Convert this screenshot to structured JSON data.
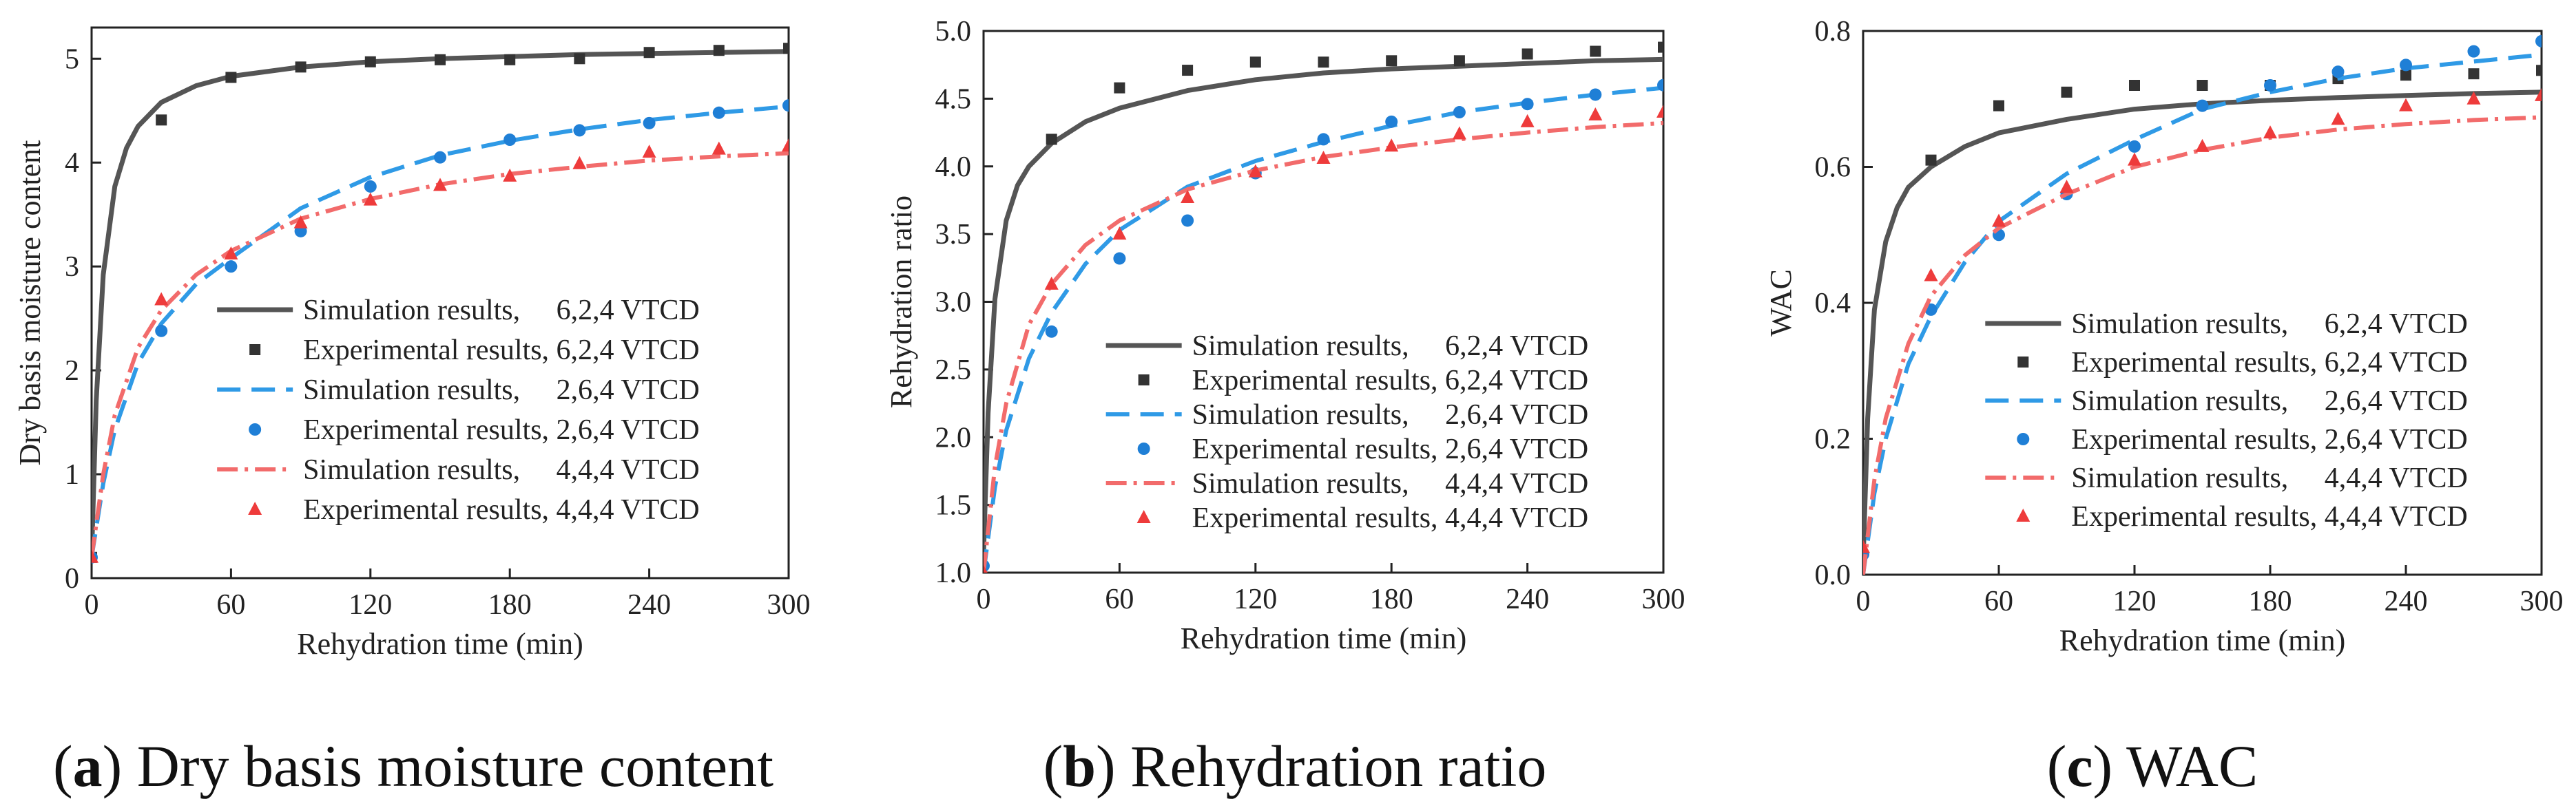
{
  "figure": {
    "captions": [
      {
        "letter": "a",
        "text": ") Dry basis moisture content",
        "open": "("
      },
      {
        "letter": "b",
        "text": ") Rehydration ratio",
        "open": "("
      },
      {
        "letter": "c",
        "text": ") WAC",
        "open": "("
      }
    ]
  },
  "colors": {
    "sim_624": "#555555",
    "exp_624": "#333333",
    "sim_264": "#2f9ae6",
    "exp_264": "#1f7fd6",
    "sim_444": "#f26b6b",
    "exp_444": "#ee3b3b"
  },
  "chart_data": [
    {
      "type": "line",
      "title": "",
      "xlabel": "Rehydration time (min)",
      "ylabel": "Dry basis moisture content",
      "xlim": [
        0,
        300
      ],
      "ylim": [
        0,
        5.3
      ],
      "xticks": [
        0,
        60,
        120,
        180,
        240,
        300
      ],
      "xtick_labels": [
        "0",
        "60",
        "120",
        "180",
        "240",
        "300"
      ],
      "yticks": [
        0,
        1,
        2,
        3,
        4,
        5
      ],
      "ytick_labels": [
        "0",
        "1",
        "2",
        "3",
        "4",
        "5"
      ],
      "legend_position": "bottom-right",
      "series": [
        {
          "name": "Simulation results,     6,2,4 VTCD",
          "kind": "line",
          "style": "solid",
          "color_key": "sim_624",
          "x": [
            0,
            2,
            5,
            10,
            15,
            20,
            30,
            45,
            60,
            90,
            120,
            150,
            180,
            210,
            240,
            270,
            300
          ],
          "y": [
            0.2,
            1.71,
            2.92,
            3.77,
            4.14,
            4.35,
            4.58,
            4.74,
            4.83,
            4.92,
            4.97,
            5.0,
            5.02,
            5.04,
            5.05,
            5.06,
            5.07
          ]
        },
        {
          "name": "Experimental results, 6,2,4 VTCD",
          "kind": "scatter",
          "marker": "square",
          "color_key": "exp_624",
          "x": [
            0,
            30,
            60,
            90,
            120,
            150,
            180,
            210,
            240,
            270,
            300
          ],
          "y": [
            0.2,
            4.41,
            4.82,
            4.92,
            4.97,
            4.99,
            4.99,
            5.0,
            5.06,
            5.08,
            5.1
          ]
        },
        {
          "name": "Simulation results,     2,6,4 VTCD",
          "kind": "line",
          "style": "dashed",
          "color_key": "sim_264",
          "x": [
            0,
            5,
            10,
            20,
            30,
            45,
            60,
            90,
            120,
            150,
            180,
            210,
            240,
            270,
            300
          ],
          "y": [
            0.2,
            0.91,
            1.43,
            2.07,
            2.45,
            2.83,
            3.08,
            3.56,
            3.86,
            4.07,
            4.21,
            4.32,
            4.41,
            4.48,
            4.54
          ]
        },
        {
          "name": "Experimental results, 2,6,4 VTCD",
          "kind": "scatter",
          "marker": "circle",
          "color_key": "exp_264",
          "x": [
            0,
            30,
            60,
            90,
            120,
            150,
            180,
            210,
            240,
            270,
            300
          ],
          "y": [
            0.2,
            2.38,
            3.0,
            3.34,
            3.77,
            4.05,
            4.22,
            4.31,
            4.38,
            4.48,
            4.55
          ]
        },
        {
          "name": "Simulation results,     4,4,4 VTCD",
          "kind": "line",
          "style": "dashdot",
          "color_key": "sim_444",
          "x": [
            0,
            5,
            10,
            20,
            30,
            45,
            60,
            90,
            120,
            150,
            180,
            210,
            240,
            270,
            300
          ],
          "y": [
            0.2,
            1.0,
            1.57,
            2.22,
            2.58,
            2.92,
            3.15,
            3.46,
            3.65,
            3.79,
            3.89,
            3.96,
            4.02,
            4.06,
            4.09
          ]
        },
        {
          "name": "Experimental results, 4,4,4 VTCD",
          "kind": "scatter",
          "marker": "triangle",
          "color_key": "exp_444",
          "x": [
            0,
            30,
            60,
            90,
            120,
            150,
            180,
            210,
            240,
            270,
            300
          ],
          "y": [
            0.2,
            2.68,
            3.12,
            3.42,
            3.64,
            3.78,
            3.87,
            3.99,
            4.1,
            4.13,
            4.16
          ]
        }
      ]
    },
    {
      "type": "line",
      "title": "",
      "xlabel": "Rehydration time (min)",
      "ylabel": "Rehydration ratio",
      "xlim": [
        0,
        300
      ],
      "ylim": [
        1.0,
        5.0
      ],
      "xticks": [
        0,
        60,
        120,
        180,
        240,
        300
      ],
      "xtick_labels": [
        "0",
        "60",
        "120",
        "180",
        "240",
        "300"
      ],
      "yticks": [
        1.0,
        1.5,
        2.0,
        2.5,
        3.0,
        3.5,
        4.0,
        4.5,
        5.0
      ],
      "ytick_labels": [
        "1.0",
        "1.5",
        "2.0",
        "2.5",
        "3.0",
        "3.5",
        "4.0",
        "4.5",
        "5.0"
      ],
      "legend_position": "bottom-right",
      "series": [
        {
          "name": "Simulation results,     6,2,4 VTCD",
          "kind": "line",
          "style": "solid",
          "color_key": "sim_624",
          "x": [
            0,
            2,
            5,
            10,
            15,
            20,
            30,
            45,
            60,
            90,
            120,
            150,
            180,
            210,
            240,
            270,
            300
          ],
          "y": [
            1.15,
            2.18,
            3.02,
            3.6,
            3.86,
            4.0,
            4.17,
            4.33,
            4.43,
            4.56,
            4.64,
            4.69,
            4.72,
            4.74,
            4.76,
            4.78,
            4.79
          ]
        },
        {
          "name": "Experimental results, 6,2,4 VTCD",
          "kind": "scatter",
          "marker": "square",
          "color_key": "exp_624",
          "x": [
            30,
            60,
            90,
            120,
            150,
            180,
            210,
            240,
            270,
            300
          ],
          "y": [
            4.2,
            4.58,
            4.71,
            4.77,
            4.77,
            4.78,
            4.78,
            4.83,
            4.85,
            4.88
          ]
        },
        {
          "name": "Simulation results,     2,6,4 VTCD",
          "kind": "line",
          "style": "dashed",
          "color_key": "sim_264",
          "x": [
            0,
            5,
            10,
            20,
            30,
            45,
            60,
            90,
            120,
            150,
            180,
            210,
            240,
            270,
            300
          ],
          "y": [
            1.0,
            1.63,
            2.05,
            2.58,
            2.92,
            3.28,
            3.53,
            3.85,
            4.04,
            4.18,
            4.3,
            4.4,
            4.47,
            4.53,
            4.58
          ]
        },
        {
          "name": "Experimental results, 2,6,4 VTCD",
          "kind": "scatter",
          "marker": "circle",
          "color_key": "exp_264",
          "x": [
            0,
            30,
            60,
            90,
            120,
            150,
            180,
            210,
            240,
            270,
            300
          ],
          "y": [
            1.05,
            2.78,
            3.32,
            3.6,
            3.95,
            4.2,
            4.33,
            4.4,
            4.46,
            4.53,
            4.6
          ]
        },
        {
          "name": "Simulation results,     4,4,4 VTCD",
          "kind": "line",
          "style": "dashdot",
          "color_key": "sim_444",
          "x": [
            0,
            5,
            10,
            20,
            30,
            45,
            60,
            90,
            120,
            150,
            180,
            210,
            240,
            270,
            300
          ],
          "y": [
            1.0,
            1.78,
            2.25,
            2.83,
            3.13,
            3.42,
            3.6,
            3.83,
            3.97,
            4.07,
            4.14,
            4.2,
            4.25,
            4.29,
            4.32
          ]
        },
        {
          "name": "Experimental results, 4,4,4 VTCD",
          "kind": "scatter",
          "marker": "triangle",
          "color_key": "exp_444",
          "x": [
            0,
            30,
            60,
            90,
            120,
            150,
            180,
            210,
            240,
            270,
            300
          ],
          "y": [
            1.0,
            3.13,
            3.5,
            3.77,
            3.96,
            4.06,
            4.15,
            4.24,
            4.33,
            4.38,
            4.4
          ]
        }
      ]
    },
    {
      "type": "line",
      "title": "",
      "xlabel": "Rehydration time (min)",
      "ylabel": "WAC",
      "xlim": [
        0,
        300
      ],
      "ylim": [
        0.0,
        0.8
      ],
      "xticks": [
        0,
        60,
        120,
        180,
        240,
        300
      ],
      "xtick_labels": [
        "0",
        "60",
        "120",
        "180",
        "240",
        "300"
      ],
      "yticks": [
        0.0,
        0.2,
        0.4,
        0.6,
        0.8
      ],
      "ytick_labels": [
        "0.0",
        "0.2",
        "0.4",
        "0.6",
        "0.8"
      ],
      "legend_position": "bottom-right",
      "series": [
        {
          "name": "Simulation results,     6,2,4 VTCD",
          "kind": "line",
          "style": "solid",
          "color_key": "sim_624",
          "x": [
            0,
            2,
            5,
            10,
            15,
            20,
            30,
            45,
            60,
            90,
            120,
            150,
            180,
            210,
            240,
            270,
            300
          ],
          "y": [
            0.02,
            0.23,
            0.39,
            0.49,
            0.54,
            0.57,
            0.6,
            0.63,
            0.65,
            0.67,
            0.685,
            0.693,
            0.698,
            0.702,
            0.705,
            0.708,
            0.71
          ]
        },
        {
          "name": "Experimental results, 6,2,4 VTCD",
          "kind": "scatter",
          "marker": "square",
          "color_key": "exp_624",
          "x": [
            30,
            60,
            90,
            120,
            150,
            180,
            210,
            240,
            270,
            300
          ],
          "y": [
            0.61,
            0.69,
            0.71,
            0.72,
            0.72,
            0.72,
            0.73,
            0.735,
            0.737,
            0.742
          ]
        },
        {
          "name": "Simulation results,     2,6,4 VTCD",
          "kind": "line",
          "style": "dashed",
          "color_key": "sim_264",
          "x": [
            0,
            5,
            10,
            20,
            30,
            45,
            60,
            90,
            120,
            150,
            180,
            210,
            240,
            270,
            300
          ],
          "y": [
            0.0,
            0.12,
            0.2,
            0.31,
            0.38,
            0.46,
            0.52,
            0.59,
            0.64,
            0.685,
            0.71,
            0.73,
            0.745,
            0.755,
            0.765
          ]
        },
        {
          "name": "Experimental results, 2,6,4 VTCD",
          "kind": "scatter",
          "marker": "circle",
          "color_key": "exp_264",
          "x": [
            0,
            30,
            60,
            90,
            120,
            150,
            180,
            210,
            240,
            270,
            300
          ],
          "y": [
            0.03,
            0.39,
            0.5,
            0.56,
            0.63,
            0.69,
            0.72,
            0.74,
            0.75,
            0.77,
            0.785
          ]
        },
        {
          "name": "Simulation results,     4,4,4 VTCD",
          "kind": "line",
          "style": "dashdot",
          "color_key": "sim_444",
          "x": [
            0,
            5,
            10,
            20,
            30,
            45,
            60,
            90,
            120,
            150,
            180,
            210,
            240,
            270,
            300
          ],
          "y": [
            0.0,
            0.14,
            0.23,
            0.34,
            0.41,
            0.47,
            0.51,
            0.56,
            0.6,
            0.625,
            0.643,
            0.655,
            0.663,
            0.669,
            0.673
          ]
        },
        {
          "name": "Experimental results, 4,4,4 VTCD",
          "kind": "scatter",
          "marker": "triangle",
          "color_key": "exp_444",
          "x": [
            0,
            30,
            60,
            90,
            120,
            150,
            180,
            210,
            240,
            270,
            300
          ],
          "y": [
            0.04,
            0.44,
            0.52,
            0.57,
            0.61,
            0.63,
            0.65,
            0.67,
            0.69,
            0.7,
            0.705
          ]
        }
      ]
    }
  ]
}
